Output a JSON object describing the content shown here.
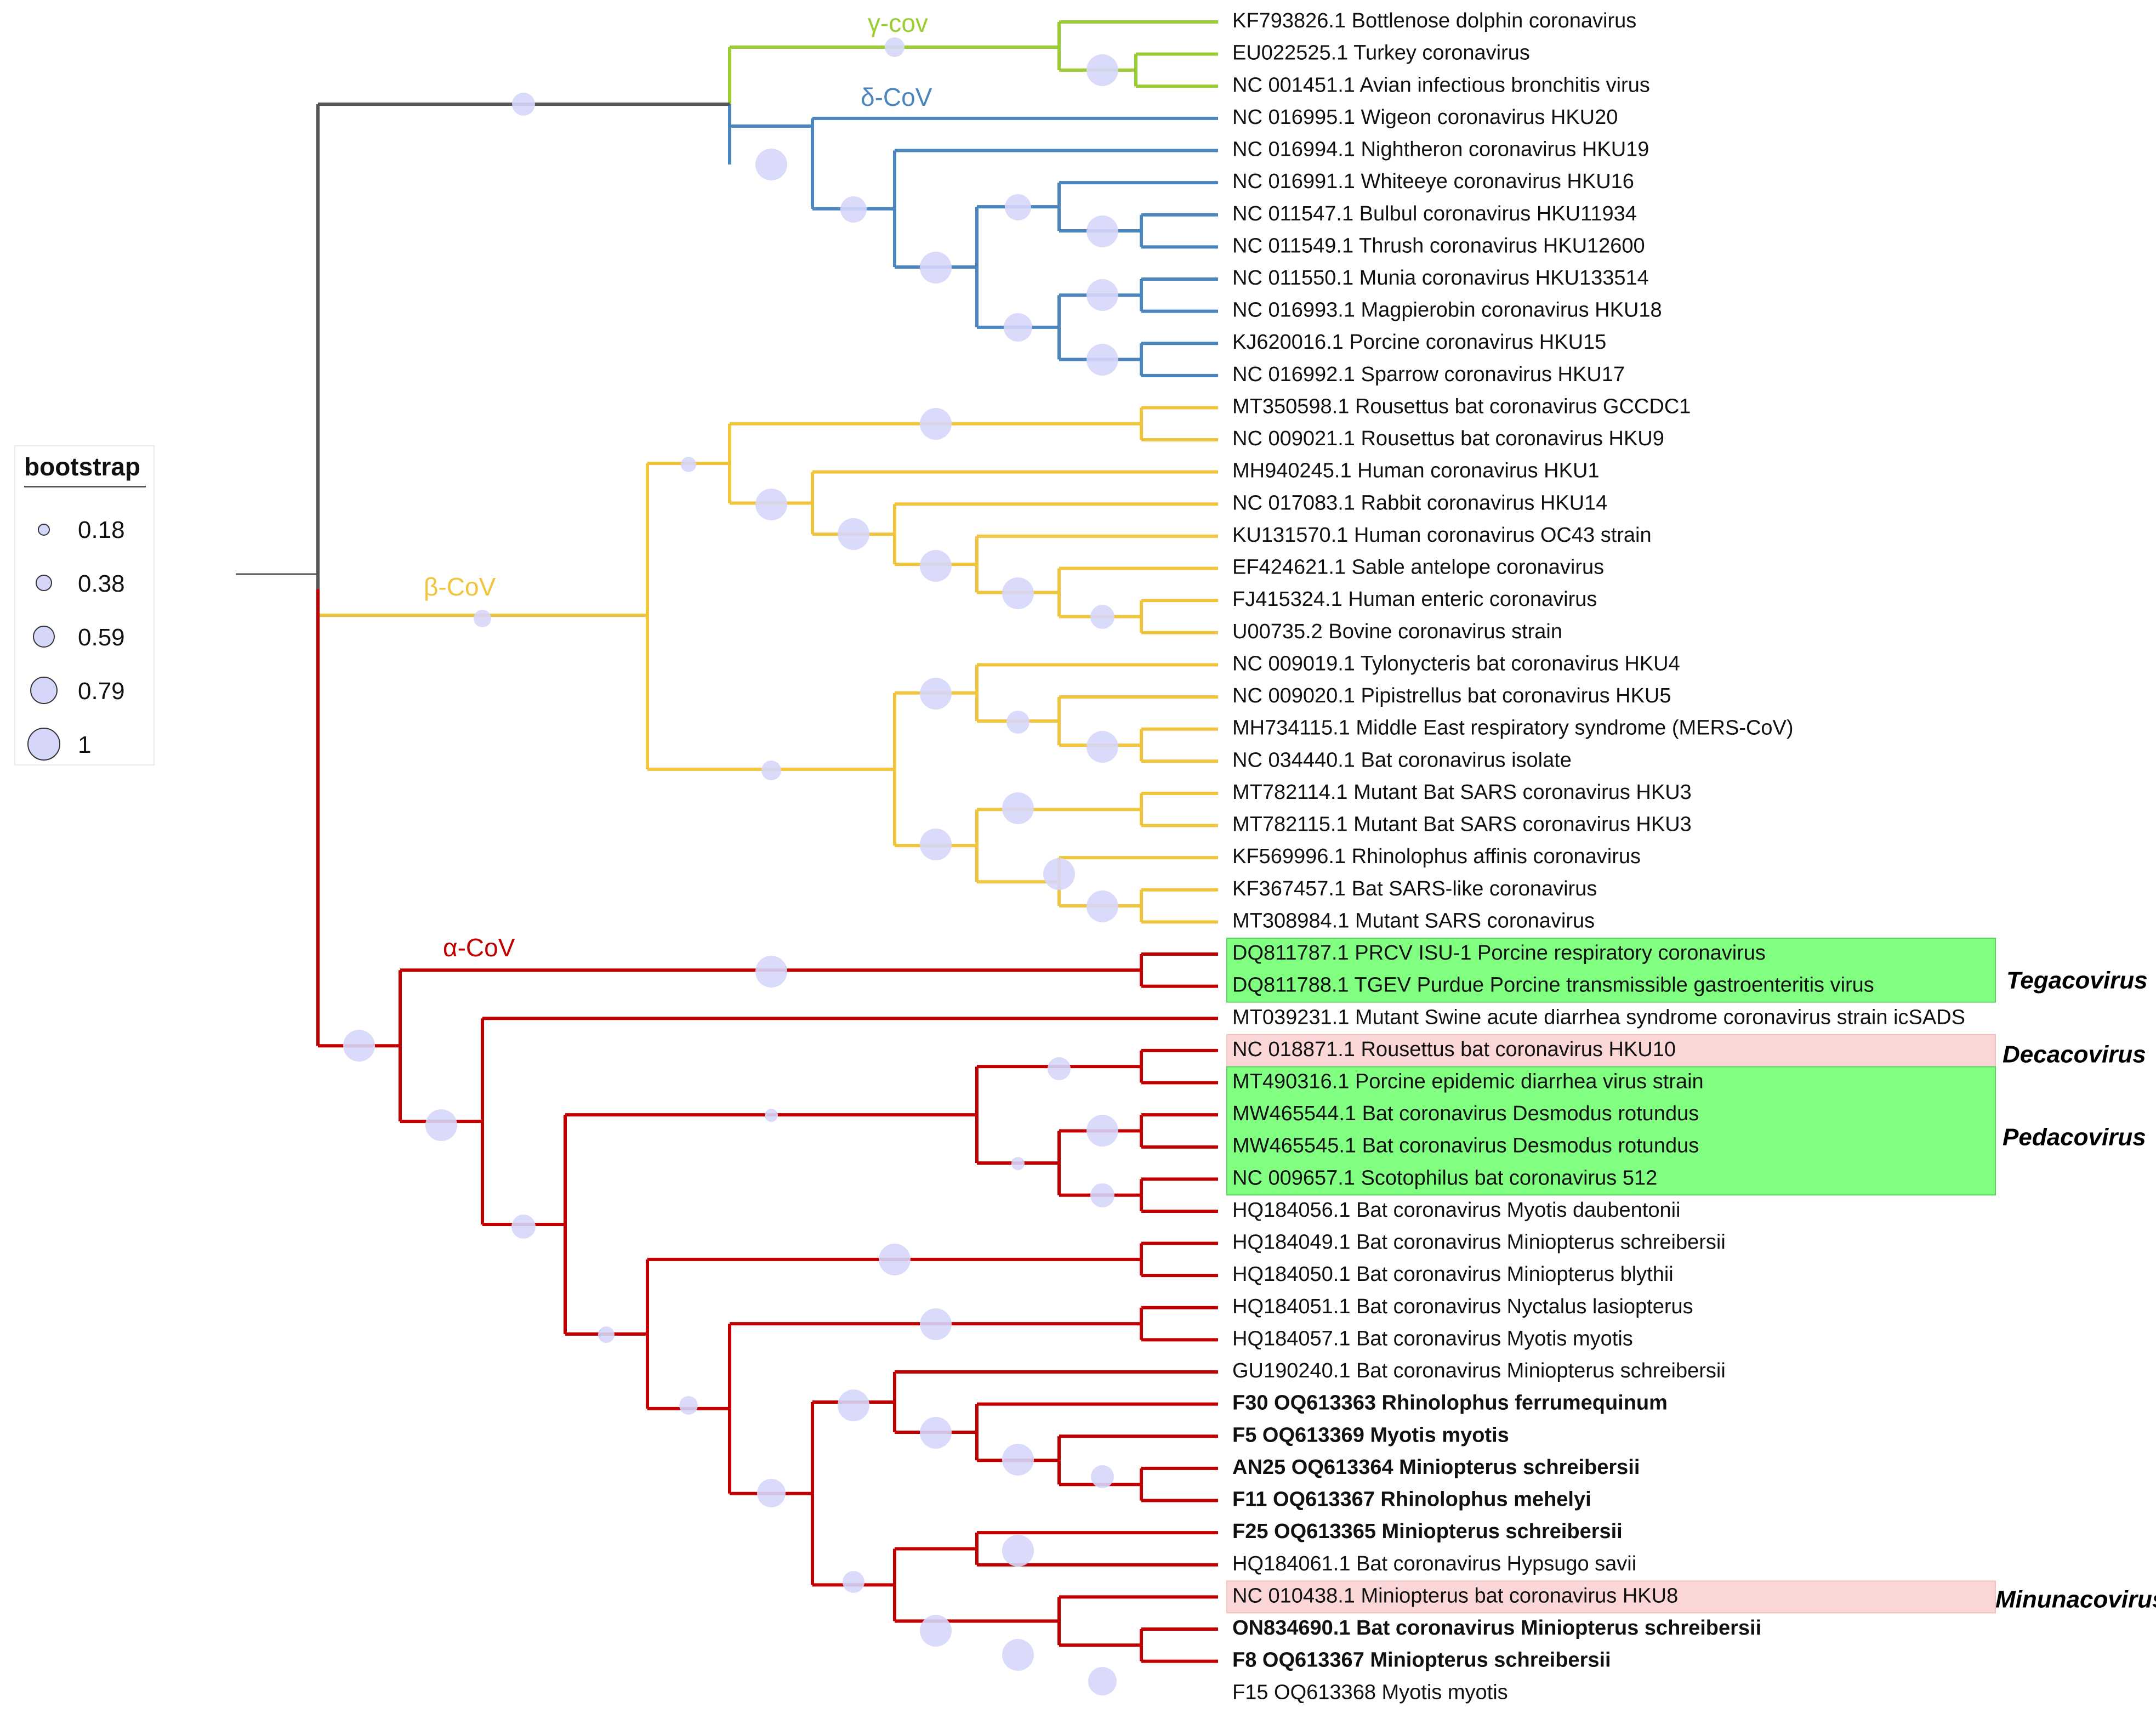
{
  "colors": {
    "gamma": "#9ACD32",
    "delta": "#4A86BD",
    "beta": "#F0C43C",
    "alpha": "#C00000",
    "root": "#555555",
    "bootstrap_fill": "#D6D6FB",
    "highlight_green": "#80FF80",
    "highlight_pink": "#FAD6D6"
  },
  "legend": {
    "title": "bootstrap",
    "items": [
      {
        "label": "0.18",
        "value": 0.18
      },
      {
        "label": "0.38",
        "value": 0.38
      },
      {
        "label": "0.59",
        "value": 0.59
      },
      {
        "label": "0.79",
        "value": 0.79
      },
      {
        "label": "1",
        "value": 1
      }
    ]
  },
  "clade_labels": {
    "gamma": "γ-cov",
    "delta": "δ-CoV",
    "beta": "β-CoV",
    "alpha": "α-CoV"
  },
  "genus_labels": {
    "tegacovirus": "Tegacovirus",
    "decacovirus": "Decacovirus",
    "pedacovirus": "Pedacovirus",
    "minunacovirus": "Minunacovirus"
  },
  "tips": [
    "KF793826.1 Bottlenose dolphin coronavirus",
    "EU022525.1 Turkey coronavirus",
    "NC 001451.1 Avian infectious bronchitis virus",
    "NC 016995.1 Wigeon coronavirus HKU20",
    "NC 016994.1 Nightheron coronavirus HKU19",
    "NC 016991.1 Whiteeye coronavirus HKU16",
    "NC 011547.1 Bulbul coronavirus HKU11934",
    "NC 011549.1 Thrush coronavirus HKU12600",
    "NC 011550.1 Munia coronavirus HKU133514",
    "NC 016993.1 Magpierobin coronavirus HKU18",
    "KJ620016.1 Porcine coronavirus HKU15",
    "NC 016992.1 Sparrow coronavirus HKU17",
    "MT350598.1 Rousettus bat coronavirus GCCDC1",
    "NC 009021.1 Rousettus bat coronavirus HKU9",
    "MH940245.1 Human coronavirus HKU1",
    "NC 017083.1 Rabbit coronavirus HKU14",
    "KU131570.1 Human coronavirus OC43 strain",
    "EF424621.1 Sable antelope coronavirus",
    "FJ415324.1 Human enteric coronavirus",
    "U00735.2 Bovine coronavirus strain",
    "NC 009019.1 Tylonycteris bat coronavirus HKU4",
    "NC 009020.1 Pipistrellus bat coronavirus HKU5",
    "MH734115.1 Middle East respiratory syndrome (MERS-CoV)",
    "NC 034440.1 Bat coronavirus isolate",
    "MT782114.1 Mutant Bat SARS coronavirus HKU3",
    "MT782115.1 Mutant Bat SARS coronavirus HKU3",
    "KF569996.1 Rhinolophus affinis coronavirus",
    "KF367457.1 Bat SARS-like coronavirus",
    "MT308984.1 Mutant SARS coronavirus",
    "DQ811787.1 PRCV ISU-1 Porcine respiratory coronavirus",
    "DQ811788.1 TGEV Purdue Porcine transmissible gastroenteritis virus",
    "MT039231.1 Mutant Swine acute diarrhea syndrome coronavirus strain icSADS",
    "NC 018871.1 Rousettus bat coronavirus HKU10",
    "MT490316.1 Porcine epidemic diarrhea virus strain",
    "MW465544.1 Bat coronavirus Desmodus rotundus",
    "MW465545.1 Bat coronavirus Desmodus rotundus",
    "NC 009657.1 Scotophilus bat coronavirus 512",
    "HQ184056.1 Bat coronavirus Myotis daubentonii",
    "HQ184049.1 Bat coronavirus Miniopterus schreibersii",
    "HQ184050.1 Bat coronavirus Miniopterus blythii",
    "HQ184051.1 Bat coronavirus Nyctalus lasiopterus",
    "HQ184057.1 Bat coronavirus Myotis myotis",
    "GU190240.1 Bat coronavirus Miniopterus schreibersii",
    "F30 OQ613363 Rhinolophus ferrumequinum",
    "F5 OQ613369 Myotis myotis",
    "AN25 OQ613364 Miniopterus schreibersii",
    "F11 OQ613367 Rhinolophus mehelyi",
    "F25 OQ613365 Miniopterus schreibersii",
    "HQ184061.1 Bat coronavirus Hypsugo savii",
    "NC 010438.1 Miniopterus bat coronavirus HKU8",
    "ON834690.1 Bat coronavirus Miniopterus schreibersii",
    "F8 OQ613367 Miniopterus schreibersii",
    "F15 OQ613368 Myotis myotis"
  ]
}
